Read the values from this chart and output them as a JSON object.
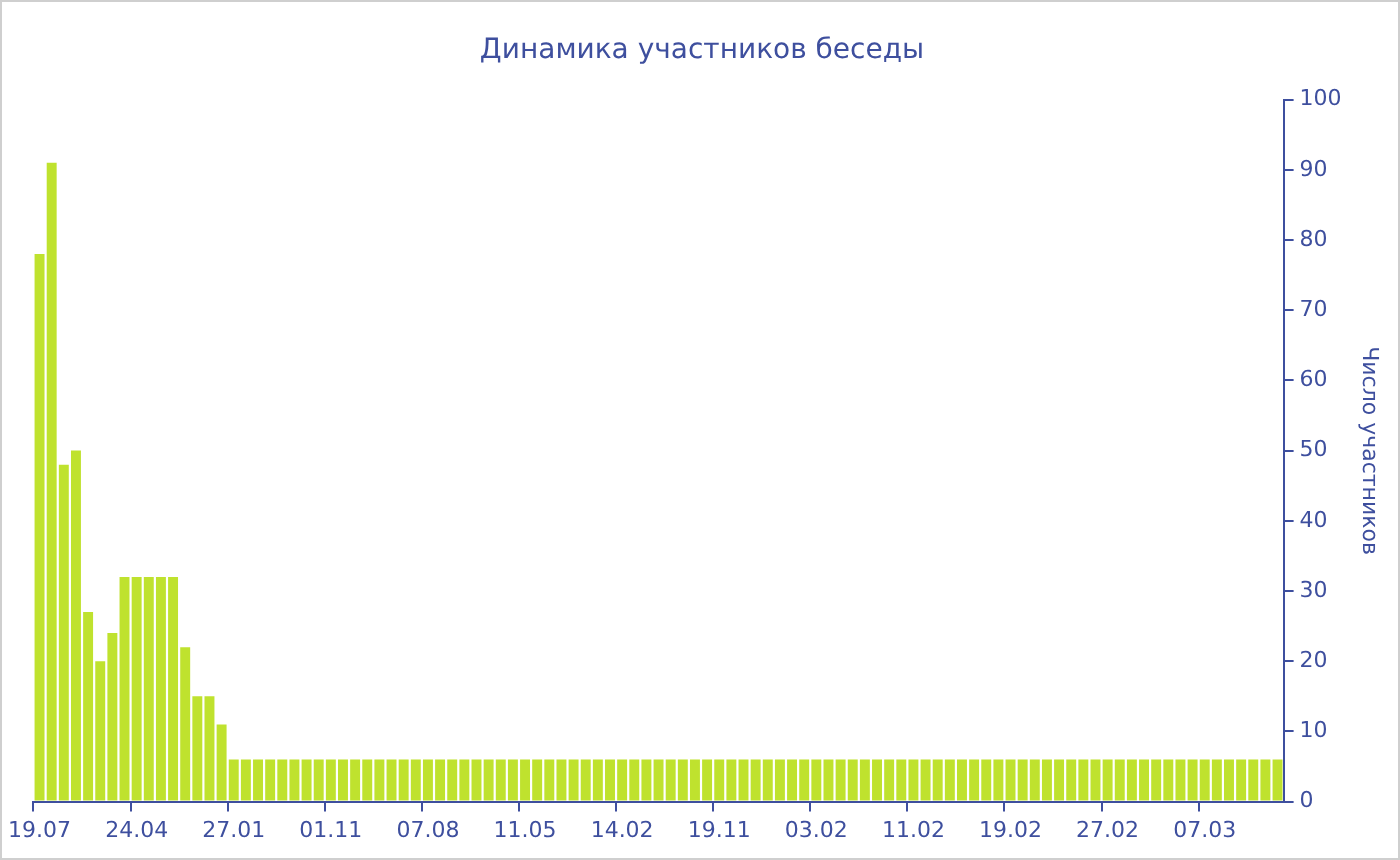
{
  "chart_data": {
    "type": "bar",
    "title": "Динамика участников беседы",
    "ylabel": "Число участников",
    "categories": [
      "19.07",
      null,
      null,
      null,
      null,
      null,
      null,
      null,
      "24.04",
      null,
      null,
      null,
      null,
      null,
      null,
      null,
      "27.01",
      null,
      null,
      null,
      null,
      null,
      null,
      null,
      "01.11",
      null,
      null,
      null,
      null,
      null,
      null,
      null,
      "07.08",
      null,
      null,
      null,
      null,
      null,
      null,
      null,
      "11.05",
      null,
      null,
      null,
      null,
      null,
      null,
      null,
      "14.02",
      null,
      null,
      null,
      null,
      null,
      null,
      null,
      "19.11",
      null,
      null,
      null,
      null,
      null,
      null,
      null,
      "03.02",
      null,
      null,
      null,
      null,
      null,
      null,
      null,
      "11.02",
      null,
      null,
      null,
      null,
      null,
      null,
      null,
      "19.02",
      null,
      null,
      null,
      null,
      null,
      null,
      null,
      "27.02",
      null,
      null,
      null,
      null,
      null,
      null,
      null,
      "07.03",
      null,
      null,
      null,
      null,
      null,
      null
    ],
    "values": [
      78,
      91,
      48,
      50,
      27,
      20,
      24,
      32,
      32,
      32,
      32,
      32,
      22,
      15,
      15,
      11,
      6,
      6,
      6,
      6,
      6,
      6,
      6,
      6,
      6,
      6,
      6,
      6,
      6,
      6,
      6,
      6,
      6,
      6,
      6,
      6,
      6,
      6,
      6,
      6,
      6,
      6,
      6,
      6,
      6,
      6,
      6,
      6,
      6,
      6,
      6,
      6,
      6,
      6,
      6,
      6,
      6,
      6,
      6,
      6,
      6,
      6,
      6,
      6,
      6,
      6,
      6,
      6,
      6,
      6,
      6,
      6,
      6,
      6,
      6,
      6,
      6,
      6,
      6,
      6,
      6,
      6,
      6,
      6,
      6,
      6,
      6,
      6,
      6,
      6,
      6,
      6,
      6,
      6,
      6,
      6,
      6,
      6,
      6,
      6,
      6,
      6,
      6
    ],
    "color": "#bfe22e",
    "ylim": [
      0,
      100
    ],
    "yticks": [
      0,
      10,
      20,
      30,
      40,
      50,
      60,
      70,
      80,
      90,
      100
    ],
    "legend": false
  }
}
